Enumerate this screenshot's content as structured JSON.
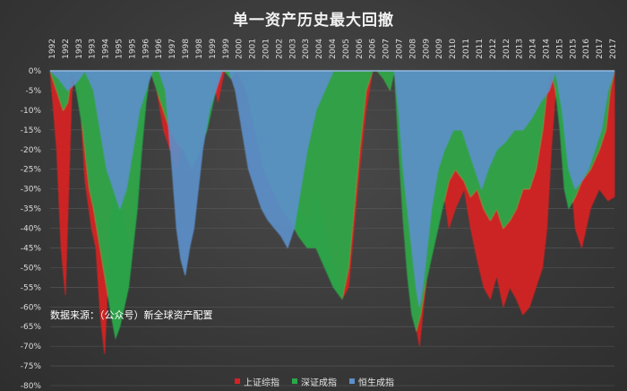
{
  "chart_data": {
    "type": "area",
    "title": "单一资产历史最大回撤",
    "source_note": "数据来源：（公众号）新全球资产配置",
    "x_tick_labels": [
      "1992",
      "1992",
      "1993",
      "1993",
      "1994",
      "1995",
      "1995",
      "1996",
      "1996",
      "1997",
      "1998",
      "1998",
      "1999",
      "1999",
      "2000",
      "2001",
      "2001",
      "2002",
      "2003",
      "2003",
      "2004",
      "2004",
      "2005",
      "2006",
      "2006",
      "2007",
      "2007",
      "2008",
      "2009",
      "2009",
      "2010",
      "2011",
      "2011",
      "2012",
      "2012",
      "2013",
      "2014",
      "2014",
      "2015",
      "2015",
      "2016",
      "2017",
      "2017"
    ],
    "y_tick_labels": [
      "0%",
      "-5%",
      "-10%",
      "-15%",
      "-20%",
      "-25%",
      "-30%",
      "-35%",
      "-40%",
      "-45%",
      "-50%",
      "-55%",
      "-60%",
      "-65%",
      "-70%",
      "-75%",
      "-80%"
    ],
    "ylim": [
      -80,
      0
    ],
    "xlim": [
      1992.0,
      2017.9
    ],
    "grid": true,
    "legend_position": "bottom",
    "series": [
      {
        "name": "上证综指",
        "color": "#d42222",
        "x": [
          1992.0,
          1992.3,
          1992.5,
          1992.7,
          1992.85,
          1993.0,
          1993.2,
          1993.4,
          1993.6,
          1993.9,
          1994.1,
          1994.3,
          1994.5,
          1994.6,
          1994.7,
          1994.9,
          1995.1,
          1995.3,
          1995.5,
          1995.7,
          1995.9,
          1996.1,
          1996.3,
          1996.6,
          1996.9,
          1997.2,
          1997.5,
          1997.8,
          1998.1,
          1998.5,
          1998.9,
          1999.2,
          1999.4,
          1999.5,
          1999.7,
          2000.0,
          2000.3,
          2000.6,
          2001.0,
          2001.4,
          2001.8,
          2002.2,
          2002.6,
          2003.0,
          2003.4,
          2003.8,
          2004.2,
          2004.6,
          2005.0,
          2005.4,
          2005.7,
          2005.95,
          2006.2,
          2006.5,
          2006.8,
          2007.0,
          2007.3,
          2007.6,
          2007.8,
          2008.0,
          2008.2,
          2008.4,
          2008.6,
          2008.8,
          2008.95,
          2009.1,
          2009.3,
          2009.5,
          2009.7,
          2010.0,
          2010.3,
          2010.6,
          2011.0,
          2011.3,
          2011.6,
          2011.9,
          2012.2,
          2012.5,
          2012.8,
          2013.1,
          2013.4,
          2013.7,
          2014.0,
          2014.3,
          2014.6,
          2014.8,
          2015.0,
          2015.2,
          2015.4,
          2015.6,
          2015.8,
          2016.1,
          2016.4,
          2016.8,
          2017.2,
          2017.6,
          2017.9
        ],
        "y": [
          0,
          -20,
          -45,
          -57,
          -30,
          -5,
          0,
          -10,
          -28,
          -40,
          -45,
          -62,
          -72,
          -60,
          -40,
          -30,
          -35,
          -30,
          -40,
          -45,
          -30,
          -20,
          -5,
          0,
          -5,
          -15,
          -20,
          -25,
          -18,
          -22,
          -15,
          -10,
          -5,
          -2,
          -8,
          0,
          -2,
          0,
          0,
          -10,
          -25,
          -30,
          -35,
          -38,
          -32,
          -40,
          -30,
          -40,
          -50,
          -58,
          -55,
          -40,
          -25,
          -10,
          0,
          0,
          -2,
          -5,
          0,
          -15,
          -35,
          -50,
          -60,
          -65,
          -70,
          -62,
          -52,
          -40,
          -32,
          -28,
          -40,
          -35,
          -30,
          -40,
          -48,
          -55,
          -58,
          -52,
          -60,
          -55,
          -58,
          -62,
          -60,
          -55,
          -50,
          -40,
          -20,
          -5,
          0,
          -5,
          -20,
          -40,
          -45,
          -35,
          -30,
          -33,
          -32
        ]
      },
      {
        "name": "深证成指",
        "color": "#2aa84a",
        "x": [
          1992.0,
          1992.3,
          1992.6,
          1992.8,
          1993.0,
          1993.2,
          1993.5,
          1993.8,
          1994.0,
          1994.3,
          1994.6,
          1994.8,
          1995.0,
          1995.2,
          1995.4,
          1995.6,
          1995.8,
          1996.0,
          1996.2,
          1996.4,
          1996.6,
          1996.9,
          1997.2,
          1997.5,
          1997.8,
          1998.1,
          1998.5,
          1998.9,
          1999.2,
          1999.4,
          1999.6,
          1999.8,
          2000.0,
          2000.3,
          2000.6,
          2001.0,
          2001.4,
          2001.8,
          2002.2,
          2002.6,
          2003.0,
          2003.4,
          2003.8,
          2004.2,
          2004.6,
          2005.0,
          2005.4,
          2005.7,
          2005.95,
          2006.2,
          2006.5,
          2006.8,
          2007.0,
          2007.3,
          2007.6,
          2007.8,
          2008.0,
          2008.2,
          2008.4,
          2008.6,
          2008.8,
          2009.0,
          2009.2,
          2009.4,
          2009.6,
          2009.8,
          2010.0,
          2010.3,
          2010.6,
          2011.0,
          2011.3,
          2011.6,
          2011.9,
          2012.2,
          2012.5,
          2012.8,
          2013.1,
          2013.4,
          2013.7,
          2014.0,
          2014.3,
          2014.6,
          2014.8,
          2015.0,
          2015.2,
          2015.4,
          2015.6,
          2015.8,
          2016.1,
          2016.4,
          2016.8,
          2017.2,
          2017.5,
          2017.7,
          2017.9
        ],
        "y": [
          0,
          -5,
          -10,
          -8,
          0,
          -5,
          -15,
          -30,
          -35,
          -45,
          -55,
          -62,
          -68,
          -65,
          -60,
          -55,
          -45,
          -35,
          -20,
          -8,
          0,
          -5,
          -10,
          -15,
          -18,
          -20,
          -25,
          -20,
          -15,
          -10,
          -5,
          0,
          0,
          -2,
          0,
          -5,
          -15,
          -25,
          -30,
          -35,
          -38,
          -42,
          -45,
          -45,
          -50,
          -55,
          -58,
          -50,
          -35,
          -20,
          -5,
          0,
          0,
          -2,
          -5,
          0,
          -20,
          -38,
          -52,
          -62,
          -66,
          -62,
          -55,
          -50,
          -45,
          -40,
          -35,
          -28,
          -25,
          -28,
          -32,
          -30,
          -35,
          -38,
          -35,
          -40,
          -38,
          -35,
          -30,
          -30,
          -25,
          -15,
          -5,
          0,
          -5,
          -15,
          -30,
          -35,
          -32,
          -28,
          -25,
          -20,
          -15,
          -5,
          0
        ]
      },
      {
        "name": "恒生成指",
        "color": "#5b8fc9",
        "x": [
          1992.0,
          1992.4,
          1992.8,
          1993.2,
          1993.6,
          1994.0,
          1994.3,
          1994.6,
          1994.9,
          1995.2,
          1995.5,
          1995.8,
          1996.1,
          1996.4,
          1996.7,
          1997.0,
          1997.3,
          1997.6,
          1997.8,
          1998.0,
          1998.2,
          1998.4,
          1998.6,
          1998.8,
          1999.0,
          1999.3,
          1999.6,
          1999.9,
          2000.2,
          2000.5,
          2000.8,
          2001.1,
          2001.4,
          2001.7,
          2002.0,
          2002.3,
          2002.6,
          2002.9,
          2003.2,
          2003.5,
          2003.8,
          2004.2,
          2004.6,
          2005.0,
          2005.4,
          2005.8,
          2006.2,
          2006.6,
          2007.0,
          2007.4,
          2007.8,
          2008.0,
          2008.2,
          2008.4,
          2008.6,
          2008.8,
          2008.95,
          2009.1,
          2009.3,
          2009.5,
          2009.8,
          2010.1,
          2010.5,
          2010.9,
          2011.2,
          2011.5,
          2011.8,
          2012.1,
          2012.5,
          2012.9,
          2013.3,
          2013.7,
          2014.1,
          2014.5,
          2014.9,
          2015.2,
          2015.5,
          2015.8,
          2016.1,
          2016.4,
          2016.7,
          2017.0,
          2017.3,
          2017.6,
          2017.9
        ],
        "y": [
          0,
          -2,
          -5,
          -3,
          0,
          -5,
          -15,
          -25,
          -30,
          -35,
          -30,
          -20,
          -10,
          -5,
          0,
          0,
          -5,
          -25,
          -40,
          -48,
          -52,
          -45,
          -40,
          -30,
          -20,
          -10,
          -5,
          0,
          0,
          -5,
          -15,
          -25,
          -30,
          -35,
          -38,
          -40,
          -42,
          -45,
          -40,
          -30,
          -20,
          -10,
          -5,
          0,
          0,
          0,
          0,
          0,
          0,
          0,
          0,
          -10,
          -25,
          -35,
          -45,
          -55,
          -60,
          -55,
          -45,
          -35,
          -25,
          -20,
          -15,
          -15,
          -20,
          -25,
          -30,
          -25,
          -20,
          -18,
          -15,
          -15,
          -12,
          -8,
          -5,
          0,
          -10,
          -25,
          -30,
          -28,
          -25,
          -20,
          -15,
          -5,
          0
        ]
      }
    ]
  }
}
